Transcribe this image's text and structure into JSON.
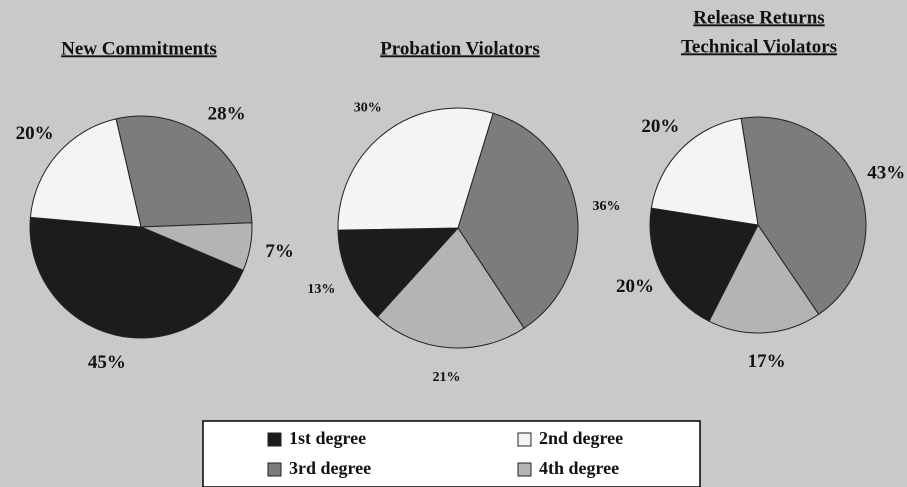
{
  "legend": {
    "labels": [
      "1st degree",
      "2nd degree",
      "3rd degree",
      "4th degree"
    ],
    "colors": [
      "#1c1c1c",
      "#f4f4f4",
      "#7c7c7c",
      "#b4b4b4"
    ]
  },
  "chart_data": [
    {
      "type": "pie",
      "title": [
        "New Commitments"
      ],
      "values": [
        45,
        20,
        28,
        7
      ],
      "value_labels": [
        "45%",
        "20%",
        "28%",
        "7%"
      ]
    },
    {
      "type": "pie",
      "title": [
        "Probation Violators"
      ],
      "values": [
        13,
        30,
        36,
        21
      ],
      "value_labels": [
        "13%",
        "30%",
        "36%",
        "21%"
      ]
    },
    {
      "type": "pie",
      "title": [
        "Release Returns",
        "Technical Violators"
      ],
      "values": [
        20,
        20,
        43,
        17
      ],
      "value_labels": [
        "20%",
        "20%",
        "43%",
        "17%"
      ]
    }
  ]
}
